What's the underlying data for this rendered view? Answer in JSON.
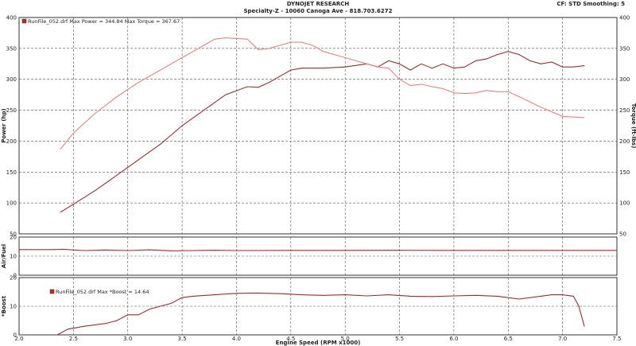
{
  "header": {
    "title": "DYNOJET RESEARCH",
    "subtitle": "Specialty-Z - 10060 Canoga Ave - 818.703.6272",
    "settings": "CF: STD  Smoothing: 5"
  },
  "chart_data": [
    {
      "type": "line",
      "panel": "power-torque",
      "legend": "RunFile_052.drf Max Power = 344.84   Max Torque = 367.67",
      "xlabel": "Engine Speed (RPM x1000)",
      "ylabel": "Power (hp)",
      "y2label": "Torque (ft-lbs)",
      "xlim": [
        2.0,
        7.5
      ],
      "ylim": [
        50,
        400
      ],
      "x_ticks": [
        "2.0",
        "2.5",
        "3.0",
        "3.5",
        "4.0",
        "4.5",
        "5.0",
        "5.5",
        "6.0",
        "6.5",
        "7.0",
        "7.5"
      ],
      "y_ticks": [
        "50",
        "100",
        "150",
        "200",
        "250",
        "300",
        "350",
        "400"
      ],
      "y2_ticks": [
        "50",
        "100",
        "150",
        "200",
        "250",
        "300",
        "350",
        "400"
      ],
      "grid": true,
      "series": [
        {
          "name": "Power",
          "color": "#a52a2a",
          "x": [
            2.38,
            2.5,
            2.7,
            2.9,
            3.1,
            3.3,
            3.5,
            3.7,
            3.9,
            4.1,
            4.2,
            4.3,
            4.4,
            4.5,
            4.6,
            4.8,
            5.0,
            5.2,
            5.3,
            5.4,
            5.5,
            5.6,
            5.7,
            5.8,
            5.9,
            6.0,
            6.1,
            6.2,
            6.3,
            6.4,
            6.5,
            6.6,
            6.7,
            6.8,
            6.9,
            7.0,
            7.1,
            7.2
          ],
          "values": [
            85,
            98,
            120,
            145,
            170,
            195,
            225,
            250,
            275,
            288,
            287,
            295,
            305,
            315,
            318,
            318,
            320,
            325,
            320,
            330,
            325,
            315,
            325,
            318,
            325,
            318,
            320,
            330,
            333,
            340,
            345,
            340,
            330,
            325,
            328,
            320,
            320,
            322
          ]
        },
        {
          "name": "Torque",
          "color": "#f08080",
          "x": [
            2.38,
            2.5,
            2.7,
            2.9,
            3.1,
            3.3,
            3.5,
            3.7,
            3.8,
            3.9,
            4.0,
            4.1,
            4.2,
            4.3,
            4.5,
            4.6,
            4.7,
            4.8,
            5.0,
            5.2,
            5.3,
            5.4,
            5.5,
            5.6,
            5.7,
            5.8,
            5.9,
            6.0,
            6.1,
            6.2,
            6.3,
            6.4,
            6.5,
            6.6,
            6.8,
            7.0,
            7.2
          ],
          "values": [
            187,
            213,
            245,
            272,
            295,
            315,
            335,
            355,
            365,
            367,
            366,
            365,
            348,
            350,
            360,
            360,
            355,
            345,
            335,
            325,
            320,
            318,
            300,
            290,
            292,
            288,
            285,
            278,
            277,
            278,
            282,
            280,
            280,
            272,
            255,
            240,
            238
          ]
        }
      ]
    },
    {
      "type": "line",
      "panel": "air-fuel",
      "ylabel": "Air/Fuel",
      "xlim": [
        2.0,
        7.5
      ],
      "ylim": [
        0,
        20
      ],
      "y_ticks": [
        "0",
        "10",
        "20"
      ],
      "grid": true,
      "series": [
        {
          "name": "Air/Fuel",
          "color": "#a52a2a",
          "x": [
            2.0,
            2.3,
            2.4,
            2.6,
            2.8,
            3.0,
            3.2,
            3.4,
            3.6,
            3.8,
            4.0,
            4.5,
            5.0,
            5.5,
            6.0,
            6.5,
            7.0,
            7.2,
            7.5
          ],
          "values": [
            13.4,
            13.4,
            13.6,
            12.9,
            13.2,
            12.9,
            13.3,
            12.8,
            12.9,
            13.1,
            12.9,
            13.0,
            13.0,
            13.1,
            13.0,
            13.0,
            13.0,
            13.0,
            13.0
          ]
        }
      ]
    },
    {
      "type": "line",
      "panel": "boost",
      "legend": "RunFile_052.drf Max *Boost = 14.64",
      "ylabel": "*Boost",
      "xlim": [
        2.0,
        7.5
      ],
      "ylim": [
        0,
        20
      ],
      "y_ticks": [
        "0",
        "10",
        "20"
      ],
      "grid": true,
      "series": [
        {
          "name": "*Boost",
          "color": "#a52a2a",
          "x": [
            2.35,
            2.45,
            2.6,
            2.8,
            2.9,
            3.0,
            3.1,
            3.2,
            3.3,
            3.4,
            3.5,
            3.6,
            3.8,
            4.0,
            4.2,
            4.4,
            4.6,
            4.8,
            5.0,
            5.2,
            5.4,
            5.6,
            5.8,
            6.0,
            6.2,
            6.4,
            6.6,
            6.8,
            6.9,
            7.0,
            7.1,
            7.15,
            7.2
          ],
          "values": [
            0,
            2,
            3,
            4,
            5,
            7,
            7,
            9,
            10,
            11,
            13,
            13.5,
            14,
            14.5,
            14.6,
            14.4,
            14,
            13.8,
            14,
            13.6,
            14,
            13.5,
            13.4,
            13.6,
            13.8,
            13.5,
            12.5,
            13.5,
            14,
            14,
            13.5,
            10,
            3
          ]
        }
      ]
    }
  ]
}
